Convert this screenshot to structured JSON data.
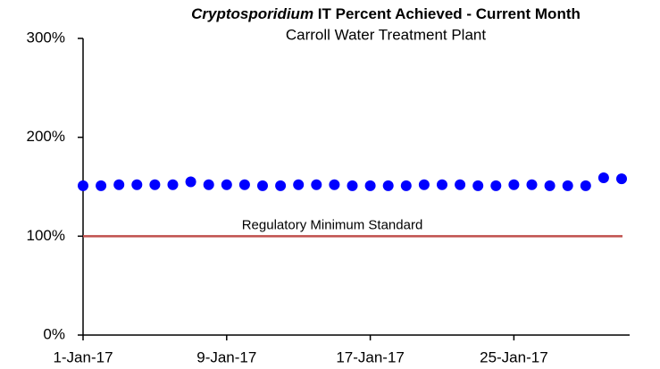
{
  "chart_data": {
    "type": "scatter",
    "title": {
      "italic": "Cryptosporidium",
      "rest": "IT Percent Achieved - Current Month"
    },
    "subtitle": "Carroll Water Treatment Plant",
    "categories": [
      "1-Jan-17",
      null,
      null,
      null,
      null,
      null,
      null,
      null,
      "9-Jan-17",
      null,
      null,
      null,
      null,
      null,
      null,
      null,
      "17-Jan-17",
      null,
      null,
      null,
      null,
      null,
      null,
      null,
      "25-Jan-17",
      null,
      null,
      null,
      null,
      null,
      null
    ],
    "series": [
      {
        "name": "Percent Achieved",
        "color": "#0000ff",
        "values": [
          151,
          151,
          152,
          152,
          152,
          152,
          155,
          152,
          152,
          152,
          151,
          151,
          152,
          152,
          152,
          151,
          151,
          151,
          151,
          152,
          152,
          152,
          151,
          151,
          152,
          152,
          151,
          151,
          151,
          159,
          158
        ]
      }
    ],
    "ylim": [
      0,
      300
    ],
    "yticks": [
      {
        "value": 0,
        "label": "0%"
      },
      {
        "value": 100,
        "label": "100%"
      },
      {
        "value": 200,
        "label": "200%"
      },
      {
        "value": 300,
        "label": "300%"
      }
    ],
    "reference_line": {
      "value": 100,
      "label": "Regulatory Minimum Standard",
      "color": "#c0504d"
    }
  }
}
